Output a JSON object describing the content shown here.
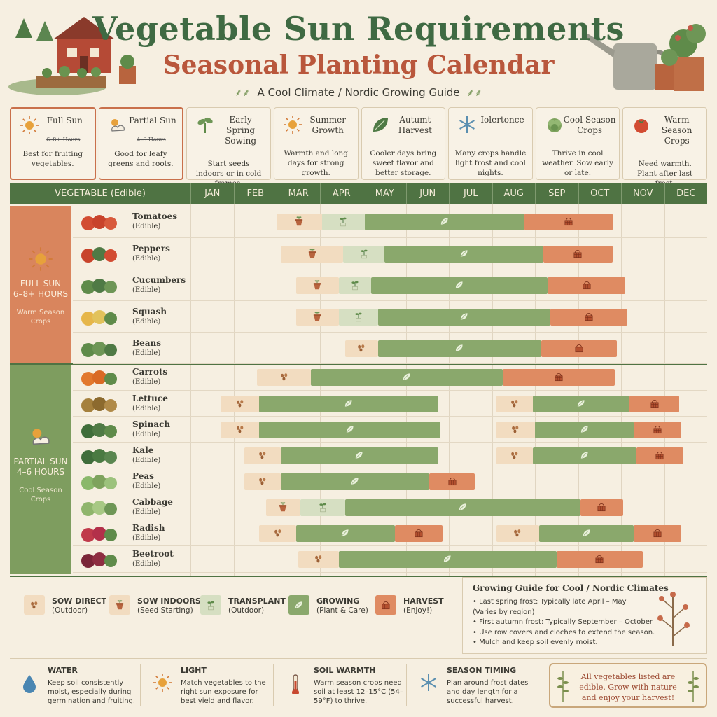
{
  "header": {
    "title": "Vegetable Sun Requirements",
    "subtitle": "Seasonal Planting Calendar",
    "tagline": "A Cool Climate / Nordic Growing Guide"
  },
  "cards": [
    {
      "name": "Full Sun",
      "sub": "6–8+ Hours",
      "desc": "Best for fruiting vegetables.",
      "icon": "sun-icon"
    },
    {
      "name": "Partial Sun",
      "sub": "4–6 Hours",
      "desc": "Good for leafy greens and roots.",
      "icon": "partial-sun-icon"
    },
    {
      "name": "Early Spring Sowing",
      "sub": "",
      "desc": "Start seeds indoors or in cold frames.",
      "icon": "seedling-icon"
    },
    {
      "name": "Summer Growth",
      "sub": "",
      "desc": "Warmth and long days for strong growth.",
      "icon": "sun-icon"
    },
    {
      "name": "Autumt Harvest",
      "sub": "",
      "desc": "Cooler days bring sweet flavor and better storage.",
      "icon": "leaf-icon"
    },
    {
      "name": "Iolertonce",
      "sub": "",
      "desc": "Many crops handle light frost and cool nights.",
      "icon": "snowflake-icon"
    },
    {
      "name": "Cool Season Crops",
      "sub": "",
      "desc": "Thrive in cool weather. Sow early or late.",
      "icon": "lettuce-icon"
    },
    {
      "name": "Warm Season Crops",
      "sub": "",
      "desc": "Need warmth. Plant after last frost.",
      "icon": "tomato-icon"
    }
  ],
  "calendar": {
    "vegetable_header": "VEGETABLE (Edible)",
    "months": [
      "JAN",
      "FEB",
      "MAR",
      "APR",
      "MAY",
      "JUN",
      "JUL",
      "AUG",
      "SEP",
      "OCT",
      "NOV",
      "DEC"
    ],
    "bands": [
      {
        "title": "FULL SUN\n6–8+ HOURS",
        "sub": "Warm Season\nCrops",
        "color": "#d9855d"
      },
      {
        "title": "PARTIAL SUN\n4–6 HOURS",
        "sub": "Cool Season\nCrops",
        "color": "#7e9d5f"
      }
    ],
    "rows": [
      {
        "name": "Tomatoes",
        "sub": "(Edible)",
        "segs": [
          [
            "ind",
            2.0,
            3.05
          ],
          [
            "trn",
            3.05,
            4.05
          ],
          [
            "grw",
            4.05,
            7.75
          ],
          [
            "hrv",
            7.75,
            9.8
          ]
        ]
      },
      {
        "name": "Peppers",
        "sub": "(Edible)",
        "segs": [
          [
            "ind",
            2.1,
            3.55
          ],
          [
            "trn",
            3.55,
            4.5
          ],
          [
            "grw",
            4.5,
            8.2
          ],
          [
            "hrv",
            8.2,
            9.8
          ]
        ]
      },
      {
        "name": "Cucumbers",
        "sub": "(Edible)",
        "segs": [
          [
            "ind",
            2.45,
            3.45
          ],
          [
            "trn",
            3.45,
            4.2
          ],
          [
            "grw",
            4.2,
            8.3
          ],
          [
            "hrv",
            8.3,
            10.1
          ]
        ]
      },
      {
        "name": "Squash",
        "sub": "(Edible)",
        "segs": [
          [
            "ind",
            2.45,
            3.45
          ],
          [
            "trn",
            3.45,
            4.35
          ],
          [
            "grw",
            4.35,
            8.35
          ],
          [
            "hrv",
            8.35,
            10.15
          ]
        ]
      },
      {
        "name": "Beans",
        "sub": "(Edible)",
        "segs": [
          [
            "sow",
            3.6,
            4.35
          ],
          [
            "grw",
            4.35,
            8.15
          ],
          [
            "hrv",
            8.15,
            9.9
          ]
        ]
      },
      {
        "name": "Carrots",
        "sub": "(Edible)",
        "segs": [
          [
            "sow",
            1.55,
            2.8
          ],
          [
            "grw",
            2.8,
            7.25
          ],
          [
            "hrv",
            7.25,
            9.85
          ]
        ]
      },
      {
        "name": "Lettuce",
        "sub": "(Edible)",
        "segs": [
          [
            "sow",
            0.7,
            1.6
          ],
          [
            "grw",
            1.6,
            5.75
          ],
          [
            "sow",
            7.1,
            7.95
          ],
          [
            "grw",
            7.95,
            10.2
          ],
          [
            "hrv",
            10.2,
            11.35
          ]
        ]
      },
      {
        "name": "Spinach",
        "sub": "(Edible)",
        "segs": [
          [
            "sow",
            0.7,
            1.6
          ],
          [
            "grw",
            1.6,
            5.8
          ],
          [
            "sow",
            7.1,
            8.0
          ],
          [
            "grw",
            8.0,
            10.3
          ],
          [
            "hrv",
            10.3,
            11.4
          ]
        ]
      },
      {
        "name": "Kale",
        "sub": "(Edible)",
        "segs": [
          [
            "sow",
            1.25,
            2.1
          ],
          [
            "grw",
            2.1,
            5.75
          ],
          [
            "sow",
            7.1,
            7.95
          ],
          [
            "grw",
            7.95,
            10.35
          ],
          [
            "hrv",
            10.35,
            11.45
          ]
        ]
      },
      {
        "name": "Peas",
        "sub": "(Edible)",
        "segs": [
          [
            "sow",
            1.25,
            2.1
          ],
          [
            "grw",
            2.1,
            5.55
          ],
          [
            "hrv",
            5.55,
            6.6
          ]
        ]
      },
      {
        "name": "Cabbage",
        "sub": "(Edible)",
        "segs": [
          [
            "ind",
            1.75,
            2.55
          ],
          [
            "trn",
            2.55,
            3.6
          ],
          [
            "grw",
            3.6,
            9.05
          ],
          [
            "hrv",
            9.05,
            10.05
          ]
        ]
      },
      {
        "name": "Radish",
        "sub": "(Edible)",
        "segs": [
          [
            "sow",
            1.6,
            2.45
          ],
          [
            "grw",
            2.45,
            4.75
          ],
          [
            "hrv",
            4.75,
            5.85
          ],
          [
            "sow",
            7.1,
            8.1
          ],
          [
            "grw",
            8.1,
            10.3
          ],
          [
            "hrv",
            10.3,
            11.4
          ]
        ]
      },
      {
        "name": "Beetroot",
        "sub": "(Edible)",
        "segs": [
          [
            "sow",
            2.5,
            3.45
          ],
          [
            "grw",
            3.45,
            8.5
          ],
          [
            "hrv",
            8.5,
            10.5
          ]
        ]
      }
    ]
  },
  "legend": [
    {
      "key": "sow",
      "label": "SOW DIRECT",
      "sub": "(Outdoor)"
    },
    {
      "key": "ind",
      "label": "SOW INDOORS",
      "sub": "(Seed Starting)"
    },
    {
      "key": "trn",
      "label": "TRANSPLANT",
      "sub": "(Outdoor)"
    },
    {
      "key": "grw",
      "label": "GROWING",
      "sub": "(Plant & Care)"
    },
    {
      "key": "hrv",
      "label": "HARVEST",
      "sub": "(Enjoy!)"
    }
  ],
  "guide": {
    "title": "Growing Guide for Cool / Nordic Climates",
    "items": [
      "Last spring frost: Typically late April – May",
      "(Varies by region)",
      "First autumn frost: Typically September – October",
      "Use row covers and cloches to extend the season.",
      "Mulch and keep soil evenly moist."
    ]
  },
  "tips": [
    {
      "title": "WATER",
      "desc": "Keep soil consistently moist, especially during germination and fruiting.",
      "icon": "water-drop-icon"
    },
    {
      "title": "LIGHT",
      "desc": "Match vegetables to the right sun exposure for best yield and flavor.",
      "icon": "sun-icon"
    },
    {
      "title": "SOIL WARMTH",
      "desc": "Warm season crops need soil at least 12–15°C (54–59°F) to thrive.",
      "icon": "thermometer-icon"
    },
    {
      "title": "SEASON TIMING",
      "desc": "Plan around frost dates and day length for a successful harvest.",
      "icon": "snowflake-icon"
    }
  ],
  "footer_note": "All vegetables listed are edible. Grow with nature and enjoy your harvest!",
  "colors": {
    "green": "#4f7343",
    "orange": "#d9855d",
    "grow": "#8aa86c",
    "harvest": "#df8b62",
    "sow": "#f2dcc0",
    "transplant": "#d6dfc2"
  }
}
